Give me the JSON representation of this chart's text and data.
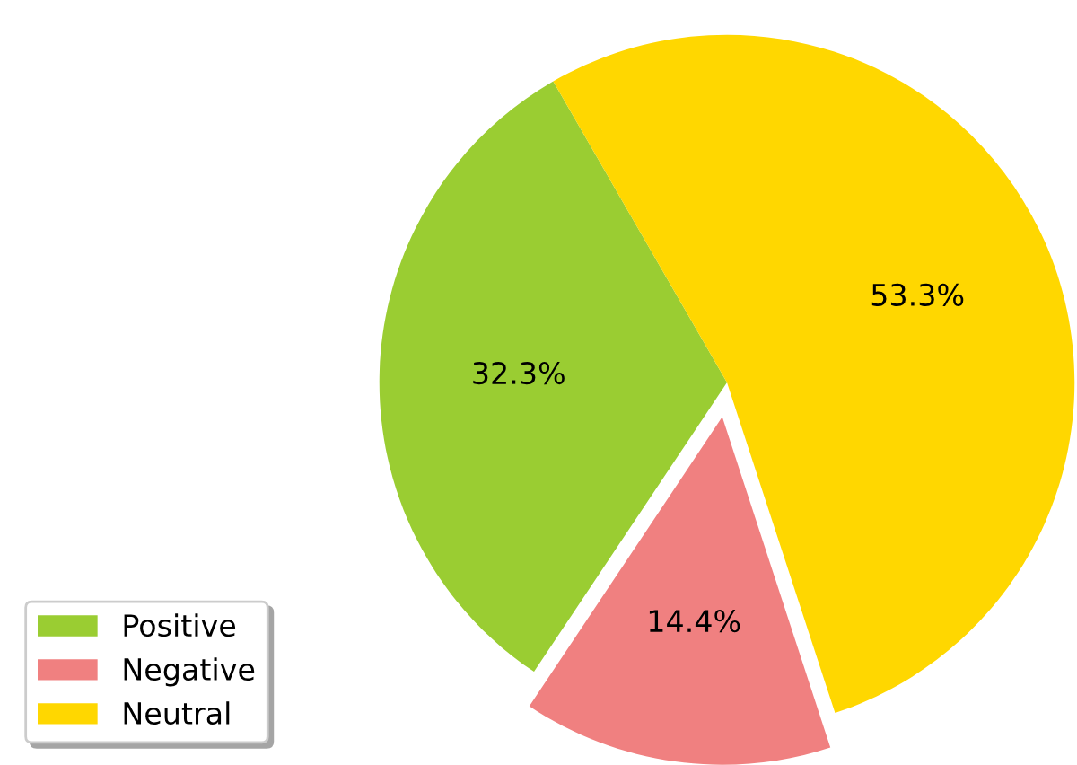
{
  "chart_data": {
    "type": "pie",
    "categories": [
      "Positive",
      "Negative",
      "Neutral"
    ],
    "values": [
      32.3,
      14.4,
      53.3
    ],
    "colors": [
      "#9acd32",
      "#f08080",
      "#ffd700"
    ],
    "value_labels": [
      "32.3%",
      "14.4%",
      "53.3%"
    ],
    "legend": "bottom left"
  }
}
